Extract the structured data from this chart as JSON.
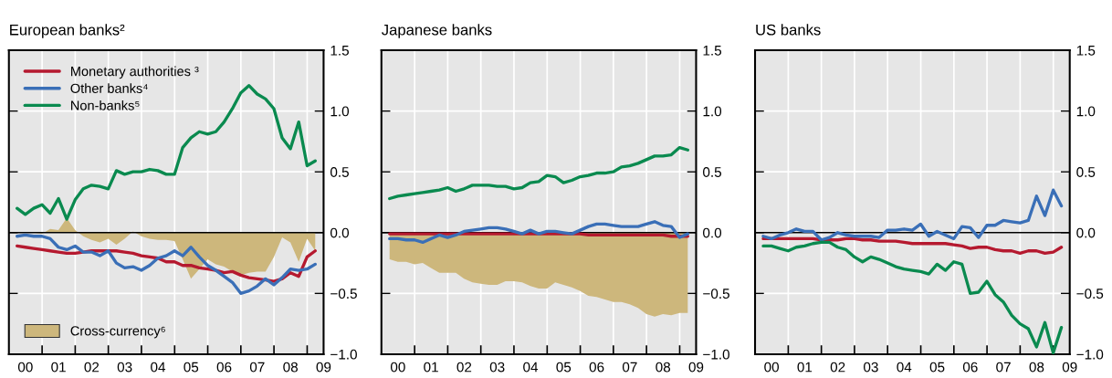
{
  "chart_data": [
    {
      "type": "line",
      "title": "European banks²",
      "x": [
        "2000-03-31",
        "2000-06-30",
        "2000-09-30",
        "2000-12-31",
        "2001-03-31",
        "2001-06-30",
        "2001-09-30",
        "2001-12-31",
        "2002-03-31",
        "2002-06-30",
        "2002-09-30",
        "2002-12-31",
        "2003-03-31",
        "2003-06-30",
        "2003-09-30",
        "2003-12-31",
        "2004-03-31",
        "2004-06-30",
        "2004-09-30",
        "2004-12-31",
        "2005-03-31",
        "2005-06-30",
        "2005-09-30",
        "2005-12-31",
        "2006-03-31",
        "2006-06-30",
        "2006-09-30",
        "2006-12-31",
        "2007-03-31",
        "2007-06-30",
        "2007-09-30",
        "2007-12-31",
        "2008-03-31",
        "2008-06-30",
        "2008-09-30",
        "2008-12-31",
        "2009-03-31"
      ],
      "series": [
        {
          "name": "Cross-currency⁶",
          "type": "area",
          "color": "#cdb77c",
          "values": [
            0.0,
            0.0,
            0.0,
            -0.01,
            0.03,
            0.02,
            0.12,
            0.02,
            -0.03,
            -0.06,
            -0.08,
            -0.05,
            -0.1,
            -0.05,
            0.01,
            -0.03,
            -0.05,
            -0.06,
            -0.06,
            -0.07,
            -0.22,
            -0.38,
            -0.3,
            -0.22,
            -0.26,
            -0.28,
            -0.32,
            -0.35,
            -0.33,
            -0.32,
            -0.32,
            -0.2,
            -0.04,
            -0.08,
            -0.24,
            -0.05,
            -0.15
          ]
        },
        {
          "name": "Monetary authorities ³",
          "color": "#b5192f",
          "values": [
            -0.11,
            -0.12,
            -0.13,
            -0.14,
            -0.15,
            -0.16,
            -0.17,
            -0.17,
            -0.16,
            -0.15,
            -0.15,
            -0.15,
            -0.15,
            -0.16,
            -0.17,
            -0.19,
            -0.2,
            -0.21,
            -0.24,
            -0.24,
            -0.27,
            -0.27,
            -0.29,
            -0.3,
            -0.31,
            -0.33,
            -0.32,
            -0.35,
            -0.37,
            -0.38,
            -0.39,
            -0.4,
            -0.38,
            -0.33,
            -0.36,
            -0.2,
            -0.15
          ]
        },
        {
          "name": "Other banks⁴",
          "color": "#3a6fb7",
          "values": [
            -0.03,
            -0.02,
            -0.03,
            -0.03,
            -0.05,
            -0.12,
            -0.14,
            -0.11,
            -0.16,
            -0.16,
            -0.19,
            -0.15,
            -0.25,
            -0.29,
            -0.28,
            -0.31,
            -0.27,
            -0.21,
            -0.19,
            -0.15,
            -0.19,
            -0.12,
            -0.2,
            -0.27,
            -0.31,
            -0.36,
            -0.41,
            -0.5,
            -0.48,
            -0.44,
            -0.38,
            -0.43,
            -0.37,
            -0.3,
            -0.31,
            -0.3,
            -0.26
          ]
        },
        {
          "name": "Non-banks⁵",
          "color": "#0a8a4f",
          "values": [
            0.2,
            0.15,
            0.2,
            0.23,
            0.16,
            0.28,
            0.11,
            0.27,
            0.36,
            0.39,
            0.38,
            0.36,
            0.51,
            0.48,
            0.5,
            0.5,
            0.52,
            0.51,
            0.48,
            0.48,
            0.7,
            0.78,
            0.83,
            0.81,
            0.83,
            0.91,
            1.02,
            1.15,
            1.21,
            1.14,
            1.1,
            1.02,
            0.78,
            0.69,
            0.91,
            0.55,
            0.59
          ]
        }
      ],
      "xlim": [
        "2000-01-01",
        "2009-07-01"
      ],
      "xticks": [
        {
          "value": "2000-07-01",
          "label": "00"
        },
        {
          "value": "2001-07-01",
          "label": "01"
        },
        {
          "value": "2002-07-01",
          "label": "02"
        },
        {
          "value": "2003-07-01",
          "label": "03"
        },
        {
          "value": "2004-07-01",
          "label": "04"
        },
        {
          "value": "2005-07-01",
          "label": "05"
        },
        {
          "value": "2006-07-01",
          "label": "06"
        },
        {
          "value": "2007-07-01",
          "label": "07"
        },
        {
          "value": "2008-07-01",
          "label": "08"
        },
        {
          "value": "2009-07-01",
          "label": "09"
        },
        {
          "value": "2001-01-01",
          "label": null
        },
        {
          "value": "2002-01-01",
          "label": null
        },
        {
          "value": "2003-01-01",
          "label": null
        },
        {
          "value": "2004-01-01",
          "label": null
        },
        {
          "value": "2005-01-01",
          "label": null
        },
        {
          "value": "2006-01-01",
          "label": null
        },
        {
          "value": "2007-01-01",
          "label": null
        },
        {
          "value": "2008-01-01",
          "label": null
        },
        {
          "value": "2009-01-01",
          "label": null
        }
      ],
      "ylim": [
        -1.0,
        1.5
      ],
      "yticks": [
        {
          "value": -1.0,
          "label": "−1.0"
        },
        {
          "value": -0.5,
          "label": "−0.5"
        },
        {
          "value": 0.0,
          "label": "0.0"
        },
        {
          "value": 0.5,
          "label": "0.5"
        },
        {
          "value": 1.0,
          "label": "1.0"
        },
        {
          "value": 1.5,
          "label": "1.5"
        }
      ],
      "ref_lines": [
        {
          "axis": "y",
          "value": 0,
          "color": "#000000"
        }
      ],
      "grid": true,
      "legend": "left"
    },
    {
      "type": "line",
      "title": "Japanese banks",
      "x": [
        "2000-03-31",
        "2000-06-30",
        "2000-09-30",
        "2000-12-31",
        "2001-03-31",
        "2001-06-30",
        "2001-09-30",
        "2001-12-31",
        "2002-03-31",
        "2002-06-30",
        "2002-09-30",
        "2002-12-31",
        "2003-03-31",
        "2003-06-30",
        "2003-09-30",
        "2003-12-31",
        "2004-03-31",
        "2004-06-30",
        "2004-09-30",
        "2004-12-31",
        "2005-03-31",
        "2005-06-30",
        "2005-09-30",
        "2005-12-31",
        "2006-03-31",
        "2006-06-30",
        "2006-09-30",
        "2006-12-31",
        "2007-03-31",
        "2007-06-30",
        "2007-09-30",
        "2007-12-31",
        "2008-03-31",
        "2008-06-30",
        "2008-09-30",
        "2008-12-31",
        "2009-03-31"
      ],
      "series": [
        {
          "type": "area",
          "color": "#cdb77c",
          "values": [
            -0.22,
            -0.24,
            -0.24,
            -0.26,
            -0.25,
            -0.29,
            -0.33,
            -0.33,
            -0.33,
            -0.38,
            -0.41,
            -0.42,
            -0.43,
            -0.43,
            -0.4,
            -0.4,
            -0.41,
            -0.44,
            -0.46,
            -0.46,
            -0.41,
            -0.43,
            -0.45,
            -0.48,
            -0.52,
            -0.53,
            -0.55,
            -0.57,
            -0.57,
            -0.59,
            -0.62,
            -0.67,
            -0.69,
            -0.67,
            -0.68,
            -0.66,
            -0.66
          ]
        },
        {
          "color": "#b5192f",
          "values": [
            -0.01,
            -0.01,
            -0.01,
            -0.01,
            -0.01,
            -0.01,
            -0.01,
            -0.01,
            -0.01,
            -0.01,
            -0.01,
            -0.01,
            -0.01,
            -0.01,
            -0.01,
            -0.01,
            -0.01,
            -0.01,
            -0.01,
            -0.01,
            -0.01,
            -0.01,
            -0.01,
            -0.01,
            -0.02,
            -0.02,
            -0.02,
            -0.02,
            -0.02,
            -0.02,
            -0.02,
            -0.02,
            -0.02,
            -0.02,
            -0.03,
            -0.03,
            -0.03
          ]
        },
        {
          "color": "#3a6fb7",
          "values": [
            -0.05,
            -0.05,
            -0.06,
            -0.06,
            -0.08,
            -0.05,
            -0.02,
            -0.04,
            -0.02,
            0.01,
            0.02,
            0.03,
            0.04,
            0.04,
            0.03,
            0.01,
            -0.01,
            0.02,
            -0.01,
            0.01,
            0.01,
            0.0,
            -0.01,
            0.02,
            0.05,
            0.07,
            0.07,
            0.06,
            0.05,
            0.05,
            0.05,
            0.07,
            0.09,
            0.06,
            0.05,
            -0.04,
            -0.01
          ]
        },
        {
          "color": "#0a8a4f",
          "values": [
            0.28,
            0.3,
            0.31,
            0.32,
            0.33,
            0.34,
            0.35,
            0.37,
            0.34,
            0.36,
            0.39,
            0.39,
            0.39,
            0.38,
            0.38,
            0.36,
            0.37,
            0.41,
            0.42,
            0.47,
            0.46,
            0.41,
            0.43,
            0.46,
            0.47,
            0.49,
            0.49,
            0.5,
            0.54,
            0.55,
            0.57,
            0.6,
            0.63,
            0.63,
            0.64,
            0.7,
            0.68
          ]
        }
      ],
      "xlim": [
        "2000-01-01",
        "2009-07-01"
      ],
      "xticks": [
        {
          "value": "2000-07-01",
          "label": "00"
        },
        {
          "value": "2001-07-01",
          "label": "01"
        },
        {
          "value": "2002-07-01",
          "label": "02"
        },
        {
          "value": "2003-07-01",
          "label": "03"
        },
        {
          "value": "2004-07-01",
          "label": "04"
        },
        {
          "value": "2005-07-01",
          "label": "05"
        },
        {
          "value": "2006-07-01",
          "label": "06"
        },
        {
          "value": "2007-07-01",
          "label": "07"
        },
        {
          "value": "2008-07-01",
          "label": "08"
        },
        {
          "value": "2009-07-01",
          "label": "09"
        },
        {
          "value": "2001-01-01",
          "label": null
        },
        {
          "value": "2002-01-01",
          "label": null
        },
        {
          "value": "2003-01-01",
          "label": null
        },
        {
          "value": "2004-01-01",
          "label": null
        },
        {
          "value": "2005-01-01",
          "label": null
        },
        {
          "value": "2006-01-01",
          "label": null
        },
        {
          "value": "2007-01-01",
          "label": null
        },
        {
          "value": "2008-01-01",
          "label": null
        },
        {
          "value": "2009-01-01",
          "label": null
        }
      ],
      "ylim": [
        -1.0,
        1.5
      ],
      "yticks": [
        {
          "value": -1.0,
          "label": "−1.0"
        },
        {
          "value": -0.5,
          "label": "−0.5"
        },
        {
          "value": 0.0,
          "label": "0.0"
        },
        {
          "value": 0.5,
          "label": "0.5"
        },
        {
          "value": 1.0,
          "label": "1.0"
        },
        {
          "value": 1.5,
          "label": "1.5"
        }
      ],
      "ref_lines": [
        {
          "axis": "y",
          "value": 0,
          "color": "#000000"
        }
      ],
      "grid": true
    },
    {
      "type": "line",
      "title": "US banks",
      "x": [
        "2000-03-31",
        "2000-06-30",
        "2000-09-30",
        "2000-12-31",
        "2001-03-31",
        "2001-06-30",
        "2001-09-30",
        "2001-12-31",
        "2002-03-31",
        "2002-06-30",
        "2002-09-30",
        "2002-12-31",
        "2003-03-31",
        "2003-06-30",
        "2003-09-30",
        "2003-12-31",
        "2004-03-31",
        "2004-06-30",
        "2004-09-30",
        "2004-12-31",
        "2005-03-31",
        "2005-06-30",
        "2005-09-30",
        "2005-12-31",
        "2006-03-31",
        "2006-06-30",
        "2006-09-30",
        "2006-12-31",
        "2007-03-31",
        "2007-06-30",
        "2007-09-30",
        "2007-12-31",
        "2008-03-31",
        "2008-06-30",
        "2008-09-30",
        "2008-12-31",
        "2009-03-31"
      ],
      "series": [
        {
          "color": "#b5192f",
          "values": [
            -0.05,
            -0.05,
            -0.05,
            -0.05,
            -0.05,
            -0.05,
            -0.05,
            -0.06,
            -0.06,
            -0.06,
            -0.05,
            -0.05,
            -0.06,
            -0.06,
            -0.07,
            -0.07,
            -0.07,
            -0.08,
            -0.09,
            -0.09,
            -0.09,
            -0.09,
            -0.09,
            -0.1,
            -0.11,
            -0.13,
            -0.12,
            -0.12,
            -0.14,
            -0.15,
            -0.15,
            -0.17,
            -0.15,
            -0.15,
            -0.17,
            -0.16,
            -0.12
          ]
        },
        {
          "color": "#3a6fb7",
          "values": [
            -0.03,
            -0.05,
            -0.02,
            0.0,
            0.03,
            0.01,
            0.01,
            -0.06,
            -0.04,
            0.0,
            -0.02,
            -0.03,
            -0.03,
            -0.03,
            -0.04,
            0.02,
            0.02,
            0.03,
            0.02,
            0.07,
            -0.03,
            0.01,
            -0.02,
            -0.05,
            0.05,
            0.04,
            -0.04,
            0.06,
            0.06,
            0.1,
            0.09,
            0.08,
            0.1,
            0.3,
            0.14,
            0.35,
            0.22
          ]
        },
        {
          "color": "#0a8a4f",
          "values": [
            -0.11,
            -0.11,
            -0.13,
            -0.15,
            -0.12,
            -0.11,
            -0.09,
            -0.08,
            -0.08,
            -0.12,
            -0.14,
            -0.2,
            -0.24,
            -0.2,
            -0.22,
            -0.25,
            -0.28,
            -0.3,
            -0.31,
            -0.32,
            -0.34,
            -0.26,
            -0.31,
            -0.24,
            -0.26,
            -0.5,
            -0.49,
            -0.4,
            -0.51,
            -0.57,
            -0.68,
            -0.75,
            -0.79,
            -0.94,
            -0.74,
            -0.99,
            -0.78
          ]
        }
      ],
      "xlim": [
        "2000-01-01",
        "2009-07-01"
      ],
      "xticks": [
        {
          "value": "2000-07-01",
          "label": "00"
        },
        {
          "value": "2001-07-01",
          "label": "01"
        },
        {
          "value": "2002-07-01",
          "label": "02"
        },
        {
          "value": "2003-07-01",
          "label": "03"
        },
        {
          "value": "2004-07-01",
          "label": "04"
        },
        {
          "value": "2005-07-01",
          "label": "05"
        },
        {
          "value": "2006-07-01",
          "label": "06"
        },
        {
          "value": "2007-07-01",
          "label": "07"
        },
        {
          "value": "2008-07-01",
          "label": "08"
        },
        {
          "value": "2009-07-01",
          "label": "09"
        },
        {
          "value": "2001-01-01",
          "label": null
        },
        {
          "value": "2002-01-01",
          "label": null
        },
        {
          "value": "2003-01-01",
          "label": null
        },
        {
          "value": "2004-01-01",
          "label": null
        },
        {
          "value": "2005-01-01",
          "label": null
        },
        {
          "value": "2006-01-01",
          "label": null
        },
        {
          "value": "2007-01-01",
          "label": null
        },
        {
          "value": "2008-01-01",
          "label": null
        },
        {
          "value": "2009-01-01",
          "label": null
        }
      ],
      "ylim": [
        -1.0,
        1.5
      ],
      "yticks": [
        {
          "value": -1.0,
          "label": "−1.0"
        },
        {
          "value": -0.5,
          "label": "−0.5"
        },
        {
          "value": 0.0,
          "label": "0.0"
        },
        {
          "value": 0.5,
          "label": "0.5"
        },
        {
          "value": 1.0,
          "label": "1.0"
        },
        {
          "value": 1.5,
          "label": "1.5"
        }
      ],
      "ref_lines": [
        {
          "axis": "y",
          "value": 0,
          "color": "#000000"
        }
      ],
      "grid": true
    }
  ]
}
